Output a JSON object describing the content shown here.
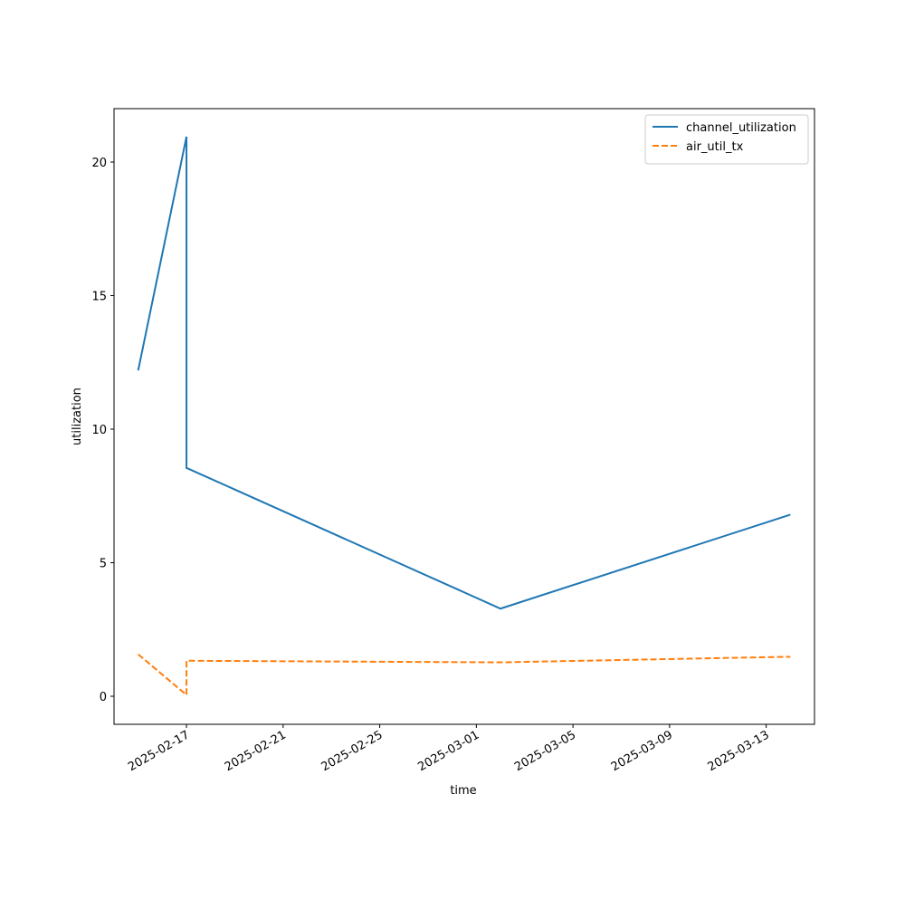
{
  "chart_data": {
    "type": "line",
    "xlabel": "time",
    "ylabel": "utilization",
    "x": [
      "2025-02-15",
      "2025-02-17",
      "2025-02-17",
      "2025-03-02",
      "2025-03-14"
    ],
    "series": [
      {
        "name": "channel_utilization",
        "color": "#1f77b4",
        "linestyle": "solid",
        "values": [
          12.2,
          20.95,
          8.55,
          3.28,
          6.8
        ]
      },
      {
        "name": "air_util_tx",
        "color": "#ff7f0e",
        "linestyle": "dashed",
        "values": [
          1.57,
          0.05,
          1.33,
          1.27,
          1.48
        ]
      }
    ],
    "xlim": [
      "2025-02-14",
      "2025-03-15"
    ],
    "xticks": [
      "2025-02-17",
      "2025-02-21",
      "2025-02-25",
      "2025-03-01",
      "2025-03-05",
      "2025-03-09",
      "2025-03-13"
    ],
    "ylim": [
      -1.05,
      22.0
    ],
    "yticks": [
      0,
      5,
      10,
      15,
      20
    ],
    "legend": "upper right"
  }
}
